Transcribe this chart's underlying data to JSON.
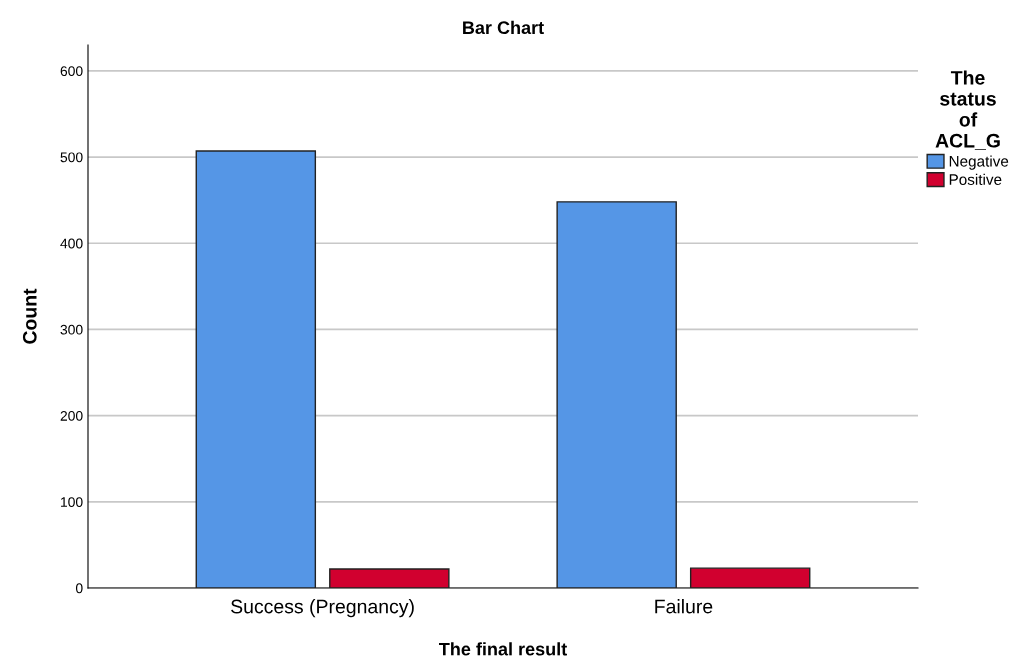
{
  "chart_data": {
    "type": "bar",
    "title": "Bar Chart",
    "xlabel": "The final result",
    "ylabel": "Count",
    "legend_title": "The\nstatus\nof\nACL_G",
    "categories": [
      "Success (Pregnancy)",
      "Failure"
    ],
    "series": [
      {
        "name": "Negative",
        "color": "#5596e6",
        "values": [
          507,
          448
        ]
      },
      {
        "name": "Positive",
        "color": "#d1002f",
        "values": [
          22,
          23
        ]
      }
    ],
    "ylim": [
      0,
      630
    ],
    "yticks": [
      0,
      100,
      200,
      300,
      400,
      500,
      600
    ],
    "grid": "y",
    "legend": "right"
  }
}
